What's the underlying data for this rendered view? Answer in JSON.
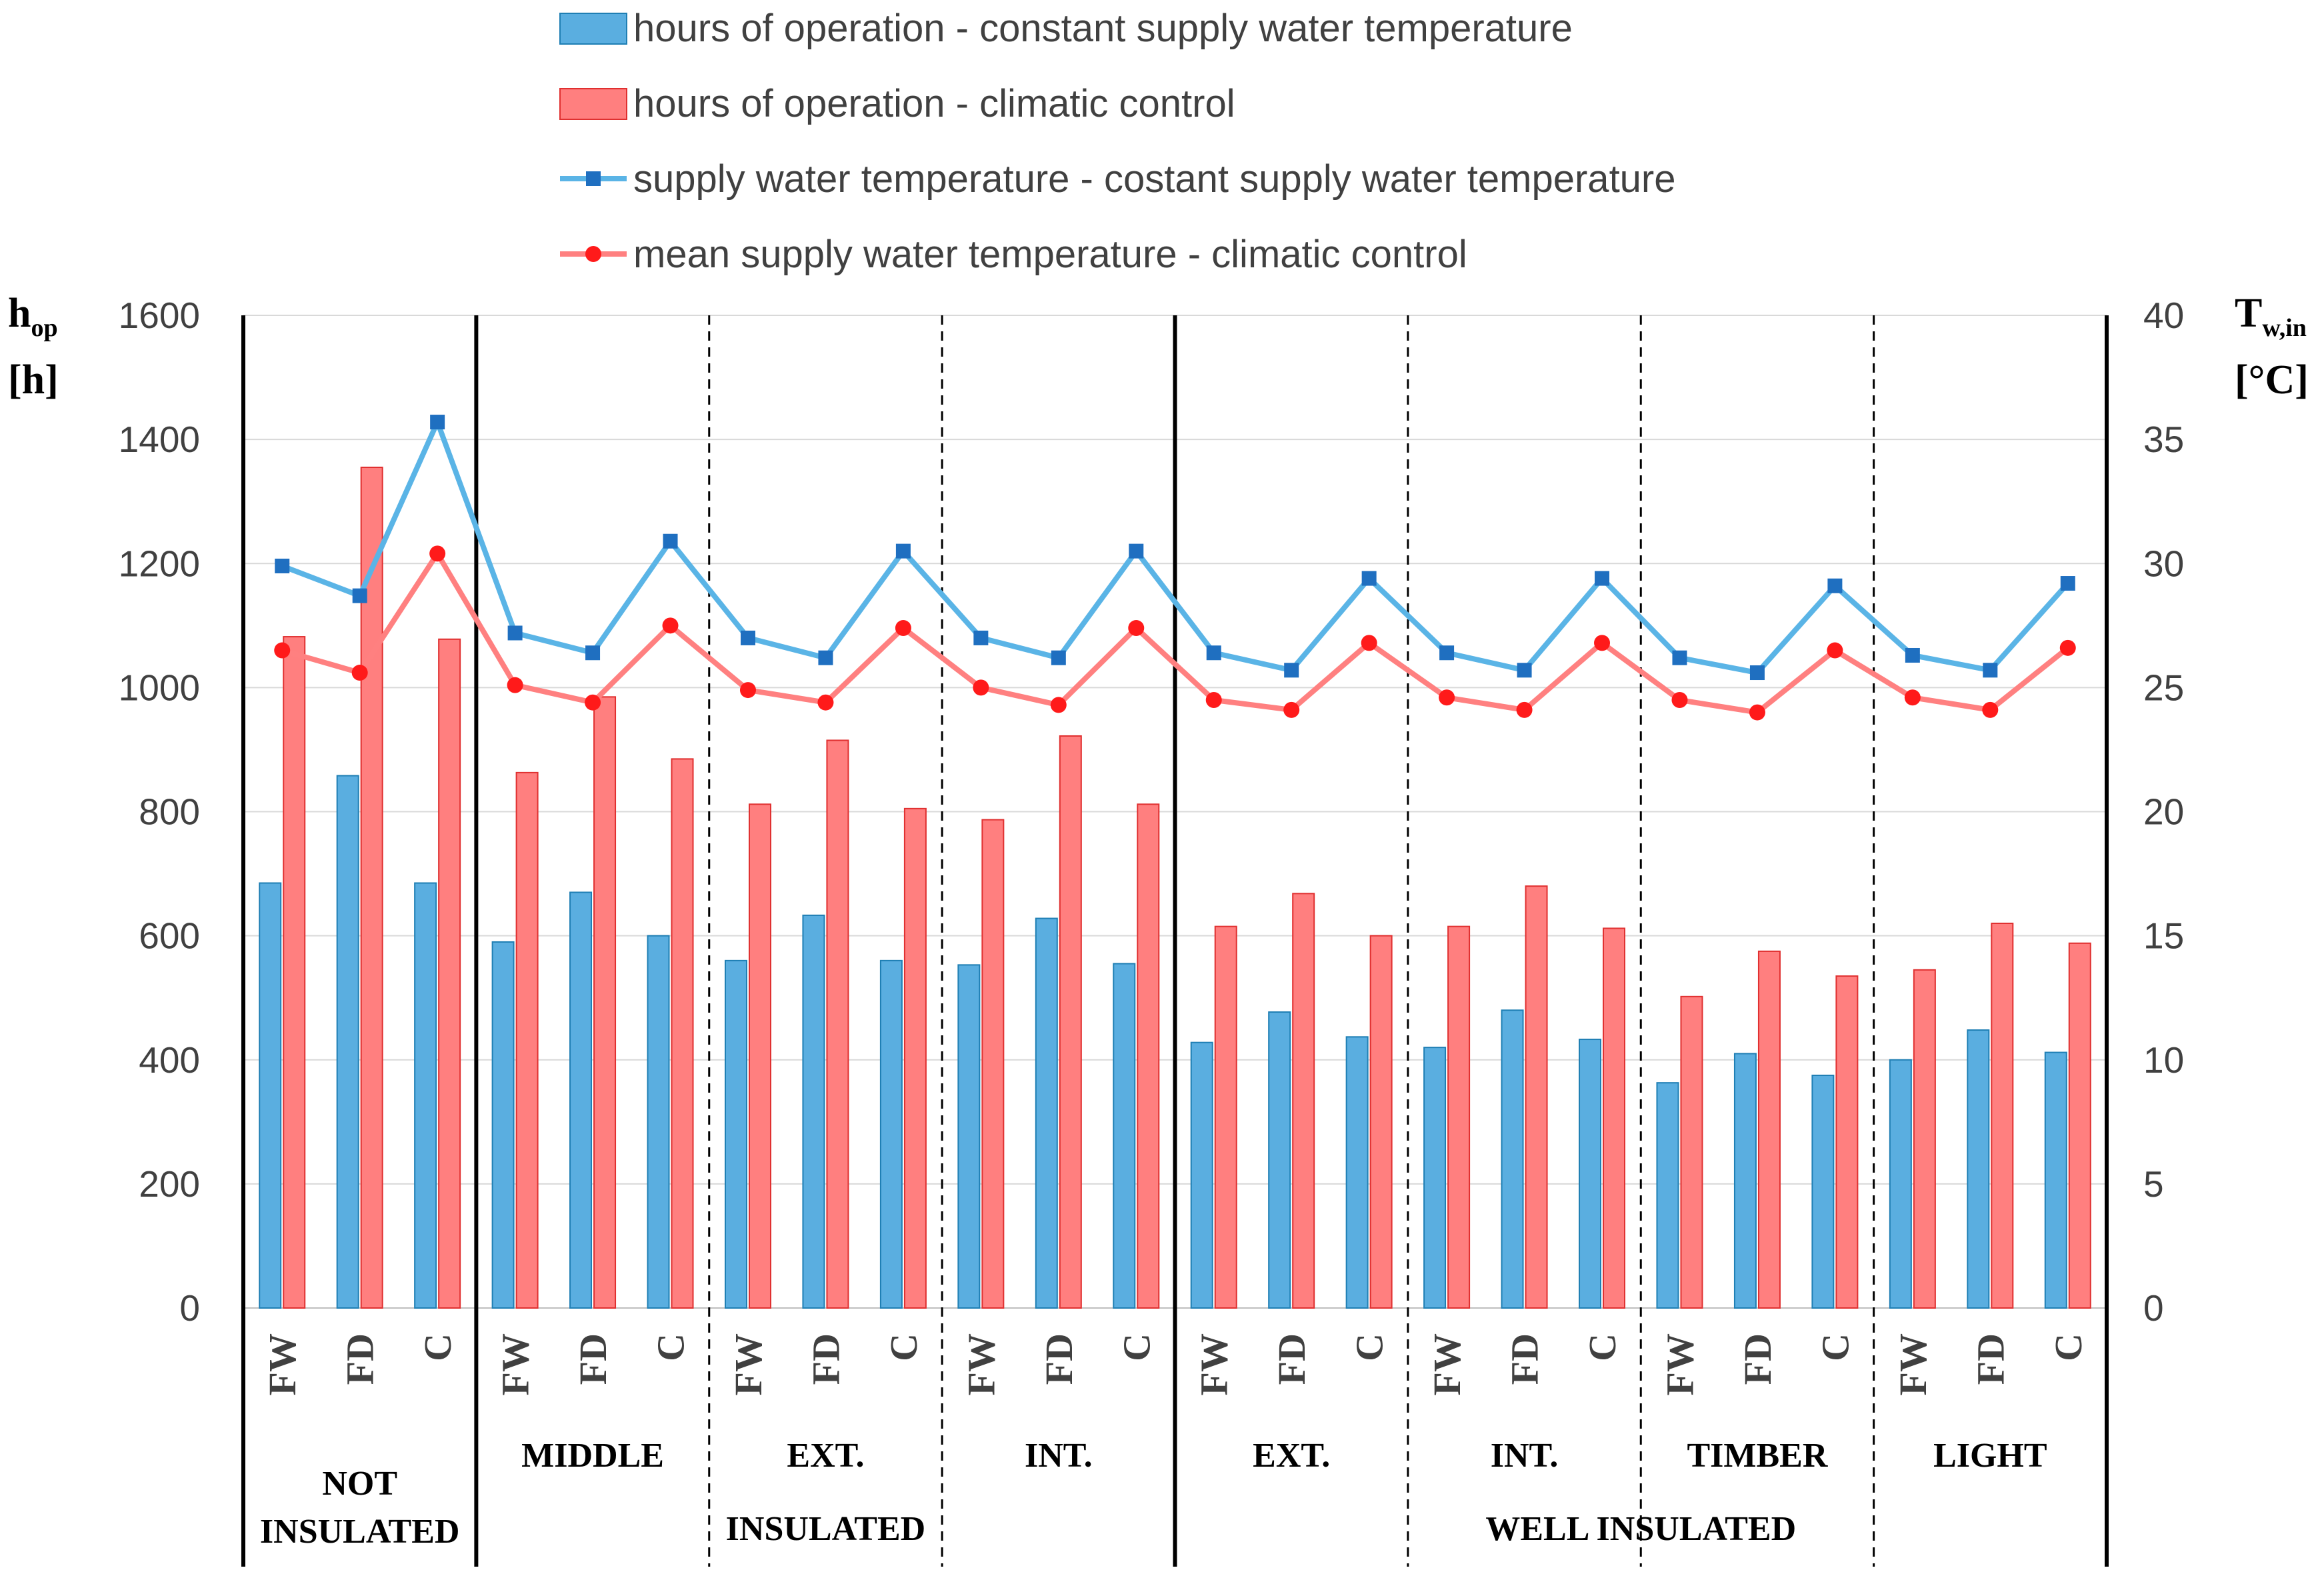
{
  "chart_data": {
    "type": "bar+line",
    "categories_per_group": [
      "FW",
      "FD",
      "C"
    ],
    "groups": [
      {
        "label": "NOT INSULATED",
        "label_lines": [
          "NOT",
          "INSULATED"
        ],
        "super": ""
      },
      {
        "label": "MIDDLE",
        "super": "INSULATED"
      },
      {
        "label": "EXT.",
        "super": "INSULATED"
      },
      {
        "label": "INT.",
        "super": "INSULATED"
      },
      {
        "label": "EXT.",
        "super": "WELL INSULATED"
      },
      {
        "label": "INT.",
        "super": "WELL INSULATED"
      },
      {
        "label": "TIMBER",
        "super": "WELL INSULATED"
      },
      {
        "label": "LIGHT",
        "super": "WELL INSULATED"
      }
    ],
    "super_groups": [
      "INSULATED",
      "WELL INSULATED"
    ],
    "bar_series": [
      {
        "name": "hours of operation - constant supply water temperature",
        "color": "#5aaee0",
        "border": "#1f7fb4",
        "values": [
          685,
          858,
          685,
          590,
          670,
          600,
          560,
          633,
          560,
          553,
          628,
          555,
          428,
          477,
          437,
          420,
          480,
          433,
          363,
          410,
          375,
          400,
          448,
          412
        ]
      },
      {
        "name": "hours of operation - climatic control",
        "color": "#ff7f7f",
        "border": "#e03030",
        "values": [
          1082,
          1355,
          1078,
          863,
          985,
          885,
          812,
          915,
          805,
          787,
          922,
          812,
          615,
          668,
          600,
          615,
          680,
          612,
          502,
          575,
          535,
          545,
          620,
          588
        ]
      }
    ],
    "line_series": [
      {
        "name": "supply water temperature - costant supply water temperature",
        "color": "#5ab4e6",
        "marker": "square",
        "marker_color": "#1f6fc0",
        "values": [
          29.9,
          28.7,
          35.7,
          27.2,
          26.4,
          30.9,
          27.0,
          26.2,
          30.5,
          27.0,
          26.2,
          30.5,
          26.4,
          25.7,
          29.4,
          26.4,
          25.7,
          29.4,
          26.2,
          25.6,
          29.1,
          26.3,
          25.7,
          29.2
        ]
      },
      {
        "name": "mean supply water temperature - climatic control",
        "color": "#ff8080",
        "marker": "circle",
        "marker_color": "#ff1a1a",
        "values": [
          26.5,
          25.6,
          30.4,
          25.1,
          24.4,
          27.5,
          24.9,
          24.4,
          27.4,
          25.0,
          24.3,
          27.4,
          24.5,
          24.1,
          26.8,
          24.6,
          24.1,
          26.8,
          24.5,
          24.0,
          26.5,
          24.6,
          24.1,
          26.6
        ]
      }
    ],
    "y_left": {
      "label": "h",
      "label_sub": "op",
      "unit": "[h]",
      "ylim": [
        0,
        1600
      ],
      "ticks": [
        "0",
        "200",
        "400",
        "600",
        "800",
        "1000",
        "1200",
        "1400",
        "1600"
      ]
    },
    "y_right": {
      "label": "T",
      "label_sub": "w,in",
      "unit": "[°C]",
      "ylim": [
        0,
        40
      ],
      "ticks": [
        "0",
        "5",
        "10",
        "15",
        "20",
        "25",
        "30",
        "35",
        "40"
      ]
    },
    "grid": true,
    "legend_position": "top"
  }
}
